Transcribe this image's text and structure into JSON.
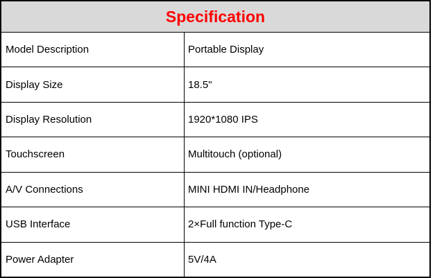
{
  "title": "Specification",
  "colors": {
    "header_bg": "#d9d9d9",
    "title_color": "#ff0000",
    "border": "#000000",
    "body_bg": "#ffffff",
    "text": "#000000"
  },
  "table": {
    "columns": [
      "label",
      "value"
    ],
    "rows": [
      {
        "label": "Model Description",
        "value": "Portable Display"
      },
      {
        "label": "Display Size",
        "value": "18.5\""
      },
      {
        "label": "Display Resolution",
        "value": "1920*1080 IPS"
      },
      {
        "label": "Touchscreen",
        "value": "Multitouch (optional)"
      },
      {
        "label": "A/V Connections",
        "value": "MINI HDMI IN/Headphone"
      },
      {
        "label": "USB Interface",
        "value": "2×Full function Type-C"
      },
      {
        "label": "Power Adapter",
        "value": "5V/4A"
      }
    ]
  }
}
